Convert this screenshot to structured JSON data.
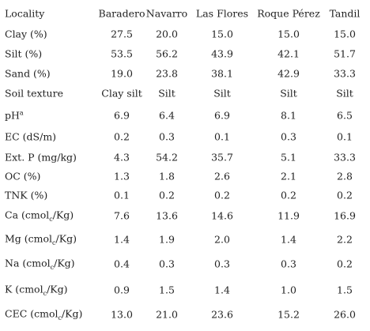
{
  "table": {
    "header": [
      "Locality",
      "Baradero",
      "Navarro",
      "Las Flores",
      "Roque Pérez",
      "Tandil"
    ],
    "rows": [
      [
        {
          "text": "Clay (%)"
        },
        "27.5",
        "20.0",
        "15.0",
        "15.0",
        "15.0"
      ],
      [
        {
          "text": "Silt (%)"
        },
        "53.5",
        "56.2",
        "43.9",
        "42.1",
        "51.7"
      ],
      [
        {
          "text": "Sand (%)"
        },
        "19.0",
        "23.8",
        "38.1",
        "42.9",
        "33.3"
      ],
      [
        {
          "text": "Soil texture"
        },
        "Clay silt",
        "Silt",
        "Silt",
        "Silt",
        "Silt"
      ],
      [
        {
          "text": "pH",
          "sup": "a"
        },
        "6.9",
        "6.4",
        "6.9",
        "8.1",
        "6.5"
      ],
      [
        {
          "text": "EC (dS/m)"
        },
        "0.2",
        "0.3",
        "0.1",
        "0.3",
        "0.1"
      ],
      [
        {
          "text": "Ext. P (mg/kg)"
        },
        "4.3",
        "54.2",
        "35.7",
        "5.1",
        "33.3"
      ],
      [
        {
          "text": "OC (%)"
        },
        "1.3",
        "1.8",
        "2.6",
        "2.1",
        "2.8"
      ],
      [
        {
          "text": "TNK (%)"
        },
        "0.1",
        "0.2",
        "0.2",
        "0.2",
        "0.2"
      ],
      [
        {
          "text": "Ca (cmol",
          "sub": "c",
          "rest": "/Kg)"
        },
        "7.6",
        "13.6",
        "14.6",
        "11.9",
        "16.9"
      ],
      [
        {
          "text": "Mg (cmol",
          "sub": "c",
          "rest": "/Kg)"
        },
        "1.4",
        "1.9",
        "2.0",
        "1.4",
        "2.2"
      ],
      [
        {
          "text": "Na (cmol",
          "sub": "c",
          "rest": "/Kg)"
        },
        "0.4",
        "0.3",
        "0.3",
        "0.3",
        "0.2"
      ],
      [
        {
          "text": "K (cmol",
          "sub": "c",
          "rest": "/Kg)"
        },
        "0.9",
        "1.5",
        "1.4",
        "1.0",
        "1.5"
      ],
      [
        {
          "text": "CEC (cmol",
          "sub": "c",
          "rest": "/Kg)"
        },
        "13.0",
        "21.0",
        "23.6",
        "15.2",
        "26.0"
      ]
    ]
  }
}
